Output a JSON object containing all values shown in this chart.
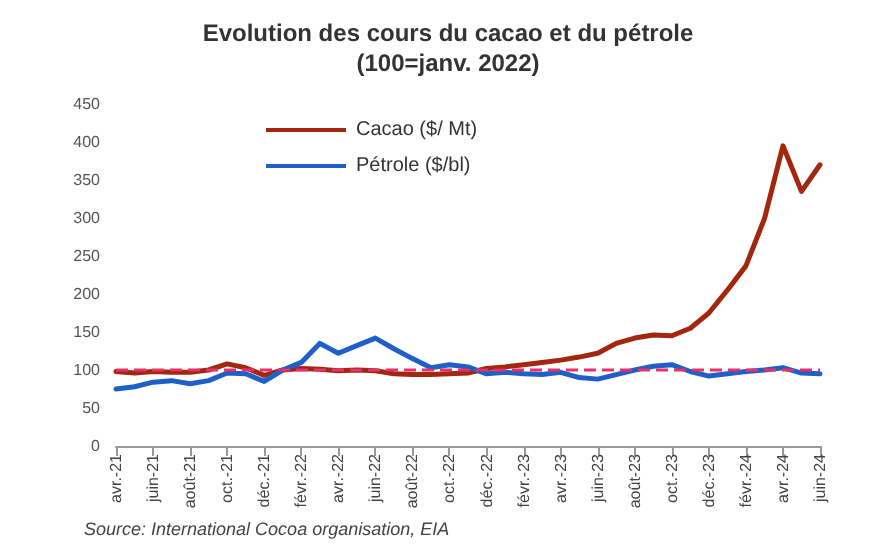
{
  "chart_data": {
    "type": "line",
    "title": "Evolution des cours du cacao et du pétrole\n(100=janv. 2022)",
    "categories": [
      "avr.-21",
      null,
      "juin-21",
      null,
      "août-21",
      null,
      "oct.-21",
      null,
      "déc.-21",
      null,
      "févr.-22",
      null,
      "avr.-22",
      null,
      "juin-22",
      null,
      "août-22",
      null,
      "oct.-22",
      null,
      "déc.-22",
      null,
      "févr.-23",
      null,
      "avr.-23",
      null,
      "juin-23",
      null,
      "août-23",
      null,
      "oct.-23",
      null,
      "déc.-23",
      null,
      "févr.-24",
      null,
      "avr.-24",
      null,
      "juin-24"
    ],
    "series": [
      {
        "name": "Cacao ($/ Mt)",
        "color": "#a3260f",
        "values": [
          98,
          96,
          98,
          97,
          97,
          100,
          108,
          103,
          93,
          100,
          102,
          101,
          99,
          100,
          99,
          95,
          94,
          94,
          95,
          96,
          102,
          104,
          107,
          110,
          113,
          117,
          122,
          135,
          142,
          146,
          145,
          155,
          175,
          205,
          237,
          299,
          395,
          335,
          370
        ]
      },
      {
        "name": "Pétrole ($/bl)",
        "color": "#1f5fc8",
        "values": [
          75,
          78,
          84,
          86,
          82,
          86,
          96,
          95,
          85,
          100,
          110,
          135,
          122,
          132,
          142,
          128,
          115,
          103,
          107,
          104,
          95,
          97,
          95,
          94,
          97,
          90,
          88,
          94,
          100,
          105,
          107,
          98,
          92,
          95,
          98,
          100,
          103,
          96,
          95
        ]
      }
    ],
    "ylim": [
      0,
      450
    ],
    "yticks": [
      0,
      50,
      100,
      150,
      200,
      250,
      300,
      350,
      400,
      450
    ],
    "ref_lines": [
      {
        "axis": "y",
        "value": 100,
        "color": "#e8306a",
        "line_style": "dashed"
      }
    ],
    "legend": "top left",
    "grid": false,
    "marker": "none",
    "line_style": "solid",
    "annotations": [
      "Source: International Cocoa organisation, EIA"
    ]
  }
}
